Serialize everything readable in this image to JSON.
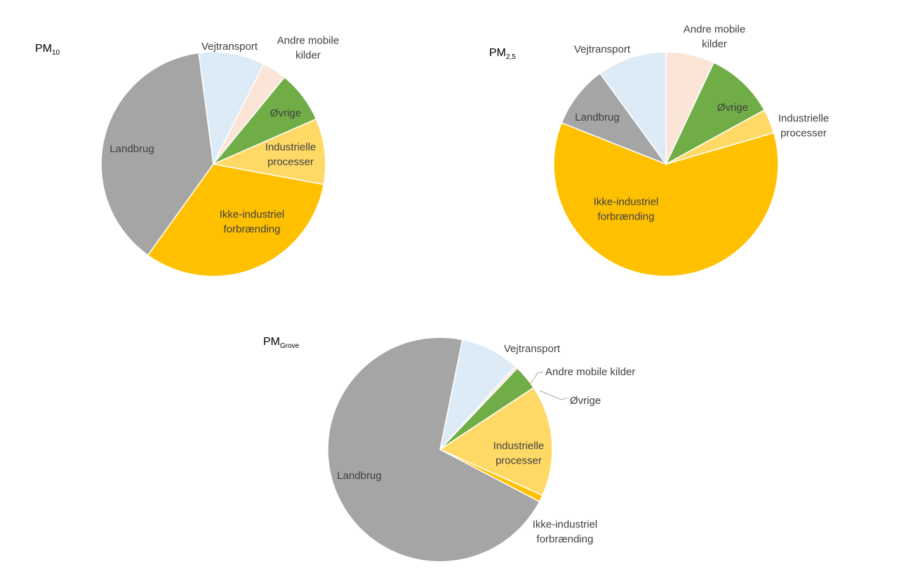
{
  "chart_data": [
    {
      "type": "pie",
      "title": "PM",
      "title_sub": "10",
      "start_angle_deg": -7.5,
      "slices": [
        {
          "name": "Vejtransport",
          "label_lines": [
            "Vejtransport"
          ],
          "value": 9.5,
          "color": "#DDEBF7"
        },
        {
          "name": "Andre mobile kilder",
          "label_lines": [
            "Andre mobile",
            "kilder"
          ],
          "value": 3.5,
          "color": "#FBE5D6"
        },
        {
          "name": "Øvrige",
          "label_lines": [
            "Øvrige"
          ],
          "value": 7.5,
          "color": "#70AD47"
        },
        {
          "name": "Industrielle processer",
          "label_lines": [
            "Industrielle",
            "processer"
          ],
          "value": 9.5,
          "color": "#FFD966"
        },
        {
          "name": "Ikke-industriel forbrænding",
          "label_lines": [
            "Ikke-industriel",
            "forbrænding"
          ],
          "value": 32.0,
          "color": "#FFC000"
        },
        {
          "name": "Landbrug",
          "label_lines": [
            "Landbrug"
          ],
          "value": 38.0,
          "color": "#A5A5A5"
        }
      ]
    },
    {
      "type": "pie",
      "title": "PM",
      "title_sub": "2,5",
      "start_angle_deg": 0,
      "slices": [
        {
          "name": "Andre mobile kilder",
          "label_lines": [
            "Andre mobile",
            "kilder"
          ],
          "value": 7.0,
          "color": "#FBE5D6"
        },
        {
          "name": "Øvrige",
          "label_lines": [
            "Øvrige"
          ],
          "value": 10.0,
          "color": "#70AD47"
        },
        {
          "name": "Industrielle processer",
          "label_lines": [
            "Industrielle",
            "processer"
          ],
          "value": 3.5,
          "color": "#FFD966"
        },
        {
          "name": "Ikke-industriel forbrænding",
          "label_lines": [
            "Ikke-industriel",
            "forbrænding"
          ],
          "value": 60.5,
          "color": "#FFC000"
        },
        {
          "name": "Landbrug",
          "label_lines": [
            "Landbrug"
          ],
          "value": 9.0,
          "color": "#A5A5A5"
        },
        {
          "name": "Vejtransport",
          "label_lines": [
            "Vejtransport"
          ],
          "value": 10.0,
          "color": "#DDEBF7"
        }
      ]
    },
    {
      "type": "pie",
      "title": "PM",
      "title_sub": "Grove",
      "start_angle_deg": 11.5,
      "slices": [
        {
          "name": "Vejtransport",
          "label_lines": [
            "Vejtransport"
          ],
          "value": 8.5,
          "color": "#DDEBF7"
        },
        {
          "name": "Andre mobile kilder",
          "label_lines": [
            "Andre mobile kilder"
          ],
          "value": 0.4,
          "color": "#FBE5D6"
        },
        {
          "name": "Øvrige",
          "label_lines": [
            "Øvrige"
          ],
          "value": 3.6,
          "color": "#70AD47"
        },
        {
          "name": "Industrielle processer",
          "label_lines": [
            "Industrielle",
            "processer"
          ],
          "value": 16.0,
          "color": "#FFD966"
        },
        {
          "name": "Ikke-industriel forbrænding",
          "label_lines": [
            "Ikke-industriel",
            "forbrænding"
          ],
          "value": 1.0,
          "color": "#FFC000"
        },
        {
          "name": "Landbrug",
          "label_lines": [
            "Landbrug"
          ],
          "value": 70.5,
          "color": "#A5A5A5"
        }
      ]
    }
  ]
}
